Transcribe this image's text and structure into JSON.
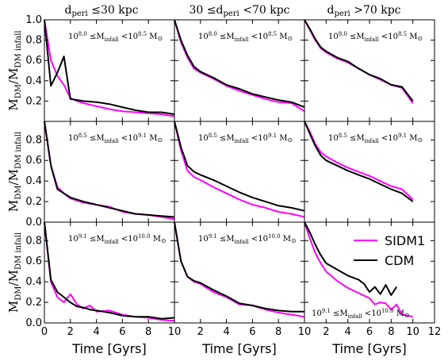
{
  "chart_data": {
    "type": "line",
    "ylabel": "M_DM/M_DM infall",
    "xlabel": "Time [Gyrs]",
    "column_titles": [
      {
        "left": "d",
        "sub": "peri",
        "right": " ≤30 kpc"
      },
      {
        "left": "30 ≤d",
        "sub": "peri",
        "right": " <70 kpc"
      },
      {
        "left": "d",
        "sub": "peri",
        "right": " >70 kpc"
      }
    ],
    "row_mass_labels": [
      {
        "lo": "8.0",
        "hi": "8.5"
      },
      {
        "lo": "8.5",
        "hi": "9.1"
      },
      {
        "lo": "9.1",
        "hi": "10.0"
      }
    ],
    "mass_label_parts": {
      "ten": "10",
      "leq": " ≤M",
      "sub": "infall",
      "lt": " <10",
      "unit": " M",
      "sun": "⊙"
    },
    "legend": {
      "location": "upper-right of bottom-right panel",
      "entries": [
        {
          "name": "SIDM1",
          "color": "#ff00ff"
        },
        {
          "name": "CDM",
          "color": "#000000"
        }
      ]
    },
    "colors": {
      "SIDM1": "#ff00ff",
      "CDM": "#000000"
    },
    "xlim": [
      0,
      10
    ],
    "xlim_last_col": [
      0,
      12
    ],
    "ylim_top_row": [
      0,
      1.0
    ],
    "ylim_other_rows": [
      0,
      0.98
    ],
    "xticks": [
      "0",
      "2",
      "4",
      "6",
      "8",
      "10"
    ],
    "xticks_last": [
      "2",
      "4",
      "6",
      "8",
      "10",
      "12"
    ],
    "xticks_last_values": [
      2,
      4,
      6,
      8,
      10,
      12
    ],
    "yticks_top": [
      "0.2",
      "0.4",
      "0.6",
      "0.8",
      "1.0"
    ],
    "yticks_top_values": [
      0.2,
      0.4,
      0.6,
      0.8,
      1.0
    ],
    "yticks_other": [
      "0.0",
      "0.2",
      "0.4",
      "0.6",
      "0.8"
    ],
    "yticks_other_values": [
      0.0,
      0.2,
      0.4,
      0.6,
      0.8
    ],
    "panels": [
      {
        "row": 0,
        "col": 0,
        "series": [
          {
            "name": "SIDM1",
            "x": [
              0,
              0.5,
              1,
              1.5,
              2,
              2.5,
              3,
              4,
              5,
              6,
              7,
              8,
              9,
              10
            ],
            "y": [
              1.0,
              0.6,
              0.45,
              0.36,
              0.23,
              0.2,
              0.18,
              0.15,
              0.12,
              0.1,
              0.09,
              0.08,
              0.07,
              0.05
            ]
          },
          {
            "name": "CDM",
            "x": [
              0,
              0.5,
              1,
              1.5,
              2,
              3,
              4,
              5,
              6,
              7,
              8,
              9,
              10
            ],
            "y": [
              1.0,
              0.35,
              0.48,
              0.64,
              0.22,
              0.2,
              0.19,
              0.17,
              0.14,
              0.11,
              0.09,
              0.09,
              0.07
            ]
          }
        ]
      },
      {
        "row": 0,
        "col": 1,
        "series": [
          {
            "name": "SIDM1",
            "x": [
              0,
              0.5,
              1,
              1.5,
              2,
              3,
              4,
              5,
              6,
              7,
              8,
              9,
              10
            ],
            "y": [
              1.0,
              0.78,
              0.63,
              0.52,
              0.48,
              0.42,
              0.35,
              0.3,
              0.26,
              0.22,
              0.19,
              0.18,
              0.1
            ]
          },
          {
            "name": "CDM",
            "x": [
              0,
              0.5,
              1,
              1.5,
              2,
              3,
              4,
              5,
              6,
              7,
              8,
              9,
              10
            ],
            "y": [
              1.0,
              0.8,
              0.65,
              0.54,
              0.49,
              0.43,
              0.36,
              0.32,
              0.27,
              0.24,
              0.21,
              0.19,
              0.14
            ]
          }
        ]
      },
      {
        "row": 0,
        "col": 2,
        "series": [
          {
            "name": "SIDM1",
            "x": [
              0,
              0.5,
              1,
              1.5,
              2,
              3,
              4,
              5,
              6,
              7,
              8,
              9,
              10
            ],
            "y": [
              1.0,
              0.9,
              0.8,
              0.72,
              0.68,
              0.62,
              0.58,
              0.52,
              0.46,
              0.41,
              0.36,
              0.33,
              0.18
            ]
          },
          {
            "name": "CDM",
            "x": [
              0,
              0.5,
              1,
              1.5,
              2,
              3,
              4,
              5,
              6,
              7,
              8,
              9,
              10
            ],
            "y": [
              1.0,
              0.91,
              0.81,
              0.73,
              0.69,
              0.63,
              0.59,
              0.52,
              0.46,
              0.42,
              0.36,
              0.34,
              0.2
            ]
          }
        ]
      },
      {
        "row": 1,
        "col": 0,
        "series": [
          {
            "name": "SIDM1",
            "x": [
              0,
              0.5,
              1,
              1.5,
              2,
              3,
              4,
              5,
              6,
              7,
              8,
              9,
              10
            ],
            "y": [
              0.98,
              0.55,
              0.34,
              0.28,
              0.23,
              0.19,
              0.17,
              0.15,
              0.1,
              0.08,
              0.07,
              0.05,
              0.03
            ]
          },
          {
            "name": "CDM",
            "x": [
              0,
              0.5,
              1,
              1.5,
              2,
              3,
              4,
              5,
              6,
              7,
              8,
              9,
              10
            ],
            "y": [
              0.98,
              0.55,
              0.32,
              0.28,
              0.24,
              0.2,
              0.17,
              0.14,
              0.11,
              0.08,
              0.07,
              0.06,
              0.05
            ]
          }
        ]
      },
      {
        "row": 1,
        "col": 1,
        "series": [
          {
            "name": "SIDM1",
            "x": [
              0,
              0.5,
              1,
              1.5,
              2,
              3,
              4,
              5,
              6,
              7,
              8,
              9,
              10
            ],
            "y": [
              0.98,
              0.7,
              0.5,
              0.44,
              0.41,
              0.34,
              0.28,
              0.22,
              0.17,
              0.14,
              0.1,
              0.08,
              0.05
            ]
          },
          {
            "name": "CDM",
            "x": [
              0,
              0.5,
              1,
              1.5,
              2,
              3,
              4,
              5,
              6,
              7,
              8,
              9,
              10
            ],
            "y": [
              0.98,
              0.73,
              0.55,
              0.49,
              0.46,
              0.41,
              0.35,
              0.29,
              0.24,
              0.2,
              0.16,
              0.14,
              0.11
            ]
          }
        ]
      },
      {
        "row": 1,
        "col": 2,
        "series": [
          {
            "name": "SIDM1",
            "x": [
              0,
              0.5,
              1,
              1.5,
              2,
              3,
              4,
              5,
              6,
              7,
              8,
              9,
              10
            ],
            "y": [
              0.98,
              0.88,
              0.76,
              0.68,
              0.64,
              0.58,
              0.53,
              0.49,
              0.45,
              0.4,
              0.35,
              0.32,
              0.22
            ]
          },
          {
            "name": "CDM",
            "x": [
              0,
              0.5,
              1,
              1.5,
              2,
              3,
              4,
              5,
              6,
              7,
              8,
              9,
              10
            ],
            "y": [
              0.98,
              0.86,
              0.74,
              0.65,
              0.6,
              0.55,
              0.5,
              0.46,
              0.42,
              0.37,
              0.32,
              0.28,
              0.2
            ]
          }
        ]
      },
      {
        "row": 2,
        "col": 0,
        "series": [
          {
            "name": "SIDM1",
            "x": [
              0,
              0.5,
              1,
              1.5,
              2,
              2.5,
              3,
              3.5,
              4,
              5,
              6,
              7,
              8,
              9,
              10
            ],
            "y": [
              0.98,
              0.4,
              0.25,
              0.2,
              0.28,
              0.18,
              0.14,
              0.17,
              0.11,
              0.12,
              0.08,
              0.06,
              0.05,
              0.03,
              0.02
            ]
          },
          {
            "name": "CDM",
            "x": [
              0,
              0.5,
              1,
              1.5,
              2,
              2.5,
              3,
              3.5,
              4,
              5,
              6,
              7,
              8,
              9,
              10
            ],
            "y": [
              0.98,
              0.42,
              0.3,
              0.25,
              0.2,
              0.16,
              0.15,
              0.13,
              0.12,
              0.1,
              0.07,
              0.06,
              0.06,
              0.04,
              0.05
            ]
          }
        ]
      },
      {
        "row": 2,
        "col": 1,
        "series": [
          {
            "name": "SIDM1",
            "x": [
              0,
              0.5,
              1,
              1.5,
              2,
              3,
              4,
              5,
              6,
              7,
              8,
              9,
              10
            ],
            "y": [
              0.98,
              0.6,
              0.45,
              0.4,
              0.38,
              0.3,
              0.25,
              0.18,
              0.17,
              0.13,
              0.1,
              0.08,
              0.06
            ]
          },
          {
            "name": "CDM",
            "x": [
              0,
              0.5,
              1,
              1.5,
              2,
              3,
              4,
              5,
              6,
              7,
              8,
              9,
              10
            ],
            "y": [
              0.98,
              0.6,
              0.45,
              0.41,
              0.39,
              0.32,
              0.26,
              0.19,
              0.17,
              0.14,
              0.12,
              0.11,
              0.11
            ]
          }
        ]
      },
      {
        "row": 2,
        "col": 2,
        "series": [
          {
            "name": "SIDM1",
            "x": [
              0,
              0.5,
              1,
              1.5,
              2,
              3,
              4,
              5,
              6,
              6.5,
              7,
              7.5,
              8,
              8.5,
              9,
              10
            ],
            "y": [
              0.98,
              0.82,
              0.68,
              0.58,
              0.5,
              0.41,
              0.34,
              0.29,
              0.24,
              0.18,
              0.2,
              0.19,
              0.13,
              0.18,
              0.08,
              0.06
            ]
          },
          {
            "name": "CDM",
            "x": [
              0,
              0.5,
              1,
              1.5,
              2,
              3,
              4,
              5,
              5.5,
              6,
              6.5,
              7,
              7.5,
              8,
              8.5
            ],
            "y": [
              0.98,
              0.88,
              0.76,
              0.66,
              0.58,
              0.52,
              0.46,
              0.42,
              0.38,
              0.3,
              0.35,
              0.28,
              0.37,
              0.27,
              0.35
            ]
          }
        ]
      }
    ]
  }
}
